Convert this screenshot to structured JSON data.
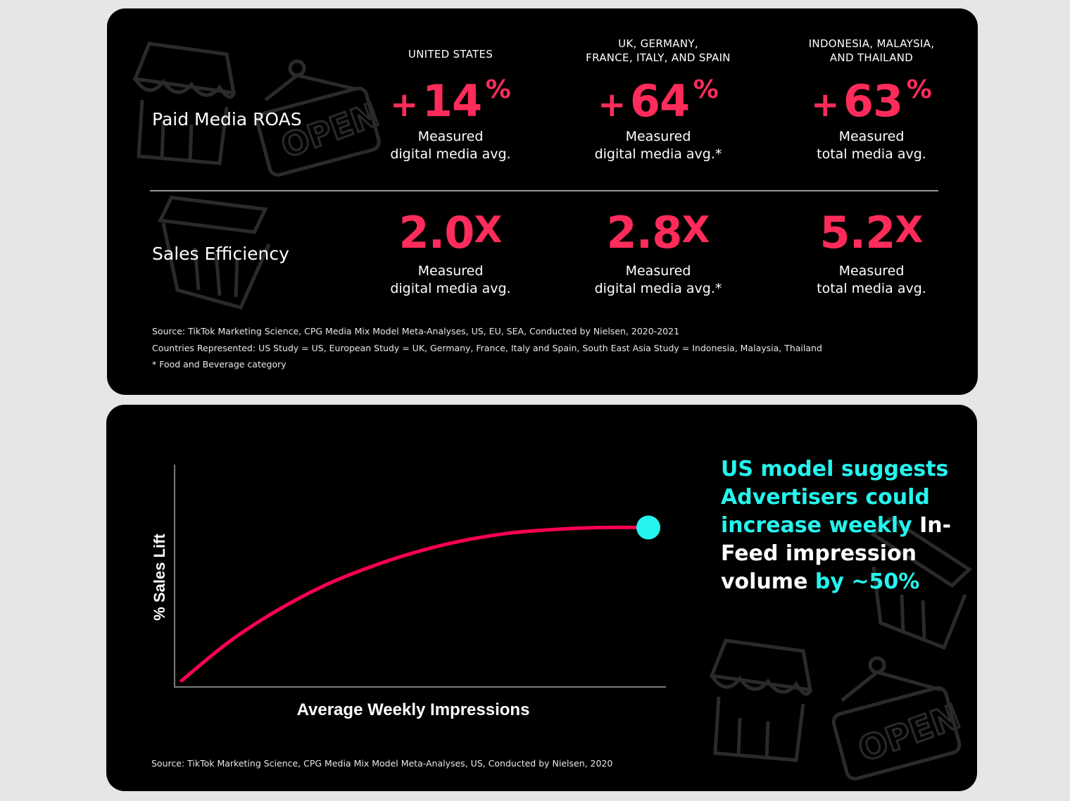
{
  "top_panel": {
    "columns": [
      {
        "header_line1": "UNITED STATES",
        "header_line2": ""
      },
      {
        "header_line1": "UK, GERMANY,",
        "header_line2": "FRANCE, ITALY, AND SPAIN"
      },
      {
        "header_line1": "INDONESIA, MALAYSIA,",
        "header_line2": "AND THAILAND"
      }
    ],
    "rows": [
      {
        "label": "Paid Media ROAS",
        "cells": [
          {
            "sign": "+",
            "value": "14",
            "suffix": "%",
            "sub1": "Measured",
            "sub2": "digital media avg."
          },
          {
            "sign": "+",
            "value": "64",
            "suffix": "%",
            "sub1": "Measured",
            "sub2": "digital media avg.*"
          },
          {
            "sign": "+",
            "value": "63",
            "suffix": "%",
            "sub1": "Measured",
            "sub2": "total media avg."
          }
        ]
      },
      {
        "label": "Sales Efficiency",
        "cells": [
          {
            "sign": "",
            "value": "2.0",
            "suffix": "X",
            "sub1": "Measured",
            "sub2": "digital media avg."
          },
          {
            "sign": "",
            "value": "2.8",
            "suffix": "X",
            "sub1": "Measured",
            "sub2": "digital media avg.*"
          },
          {
            "sign": "",
            "value": "5.2",
            "suffix": "X",
            "sub1": "Measured",
            "sub2": "total media avg."
          }
        ]
      }
    ],
    "notes": [
      "Source: TikTok Marketing Science, CPG Media Mix Model Meta-Analyses, US, EU, SEA, Conducted by Nielsen, 2020-2021",
      "Countries Represented: US Study = US, European Study = UK, Germany, France, Italy and Spain, South East Asia Study = Indonesia, Malaysia, Thailand",
      "* Food and Beverage category"
    ]
  },
  "chart_data": {
    "type": "line",
    "title": "",
    "xlabel": "Average Weekly Impressions",
    "ylabel": "% Sales Lift",
    "xlim": [
      0,
      100
    ],
    "ylim": [
      0,
      100
    ],
    "grid": false,
    "series": [
      {
        "x": [
          0,
          10,
          20,
          30,
          40,
          50,
          60,
          70,
          80,
          90,
          100
        ],
        "y": [
          0,
          20,
          36,
          49,
          59,
          67,
          73,
          77,
          79,
          80,
          80
        ],
        "color": "#ff0050"
      }
    ],
    "marker": {
      "x": 100,
      "y": 80,
      "color": "#25f4ee"
    },
    "source": "Source: TikTok Marketing Science, CPG Media Mix Model Meta-Analyses, US, Conducted by Nielsen, 2020"
  },
  "callout": {
    "part1": "US model suggests Advertisers could increase weekly",
    "part2": "In-Feed impression volume",
    "part3": "by ~50%"
  },
  "colors": {
    "accent_pink": "#ff2c5b",
    "accent_cyan": "#25f4ee",
    "curve": "#ff0050"
  },
  "icons": [
    "store-icon",
    "open-sign-icon",
    "shopping-basket-icon"
  ]
}
